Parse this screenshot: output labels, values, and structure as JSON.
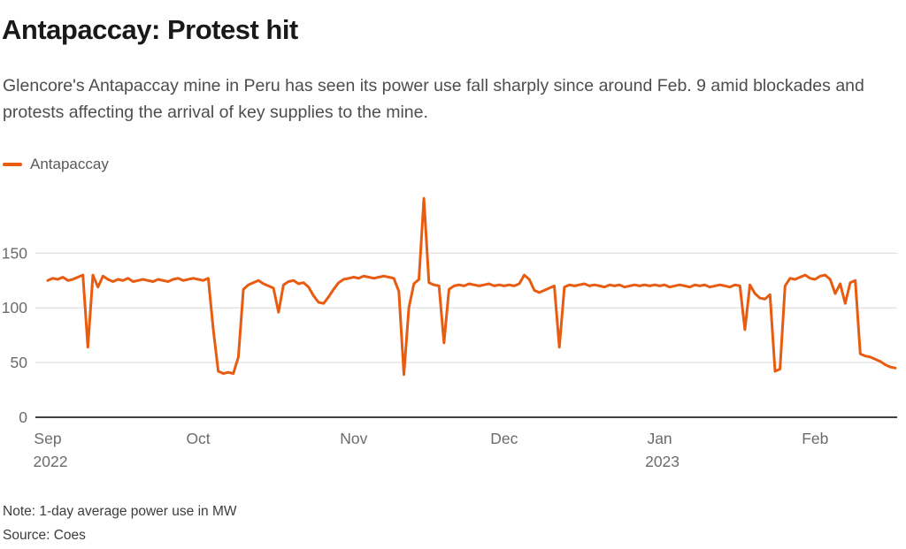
{
  "header": {
    "title": "Antapaccay: Protest hit",
    "subtitle": "Glencore's Antapaccay mine in Peru has seen its power use fall sharply since around Feb. 9 amid blockades and protests affecting the arrival of key supplies to the mine."
  },
  "legend": {
    "label": "Antapaccay",
    "color": "#e85c12"
  },
  "footer": {
    "note": "Note: 1-day average power use in MW",
    "source": "Source: Coes"
  },
  "chart_data": {
    "type": "line",
    "title": "Antapaccay: Protest hit",
    "unit": "MW",
    "x_frequency": "daily",
    "x_start_date": "2022-09-01",
    "x_end_date": "2023-02-17",
    "yticks": [
      0,
      50,
      100,
      150
    ],
    "ylim": [
      0,
      205
    ],
    "grid": "horizontal-only",
    "legend_position": "top-left",
    "line_color": "#e85c12",
    "xticks": [
      {
        "label": "Sep",
        "year_label": "2022",
        "day_index": 0
      },
      {
        "label": "Oct",
        "day_index": 30
      },
      {
        "label": "Nov",
        "day_index": 61
      },
      {
        "label": "Dec",
        "day_index": 91
      },
      {
        "label": "Jan",
        "year_label": "2023",
        "day_index": 122
      },
      {
        "label": "Feb",
        "day_index": 153
      }
    ],
    "series": [
      {
        "name": "Antapaccay",
        "values": [
          125,
          127,
          126,
          128,
          125,
          126,
          128,
          130,
          64,
          130,
          119,
          129,
          126,
          124,
          126,
          125,
          127,
          124,
          125,
          126,
          125,
          124,
          126,
          125,
          124,
          126,
          127,
          125,
          126,
          127,
          126,
          125,
          127,
          80,
          42,
          40,
          41,
          40,
          55,
          117,
          121,
          123,
          125,
          122,
          120,
          118,
          96,
          121,
          124,
          125,
          122,
          123,
          119,
          111,
          105,
          104,
          110,
          117,
          123,
          126,
          127,
          128,
          127,
          129,
          128,
          127,
          128,
          129,
          128,
          127,
          115,
          39,
          100,
          122,
          126,
          200,
          123,
          121,
          120,
          68,
          117,
          120,
          121,
          120,
          122,
          121,
          120,
          121,
          122,
          120,
          121,
          120,
          121,
          120,
          122,
          130,
          126,
          116,
          114,
          116,
          118,
          120,
          64,
          119,
          121,
          120,
          121,
          122,
          120,
          121,
          120,
          119,
          121,
          120,
          121,
          119,
          120,
          121,
          120,
          121,
          120,
          121,
          120,
          121,
          119,
          120,
          121,
          120,
          119,
          121,
          120,
          121,
          119,
          120,
          121,
          120,
          119,
          121,
          120,
          80,
          121,
          113,
          109,
          108,
          112,
          42,
          44,
          120,
          127,
          126,
          128,
          130,
          127,
          126,
          129,
          130,
          126,
          113,
          122,
          104,
          123,
          125,
          58,
          56,
          55,
          53,
          51,
          48,
          46,
          45
        ]
      }
    ]
  }
}
